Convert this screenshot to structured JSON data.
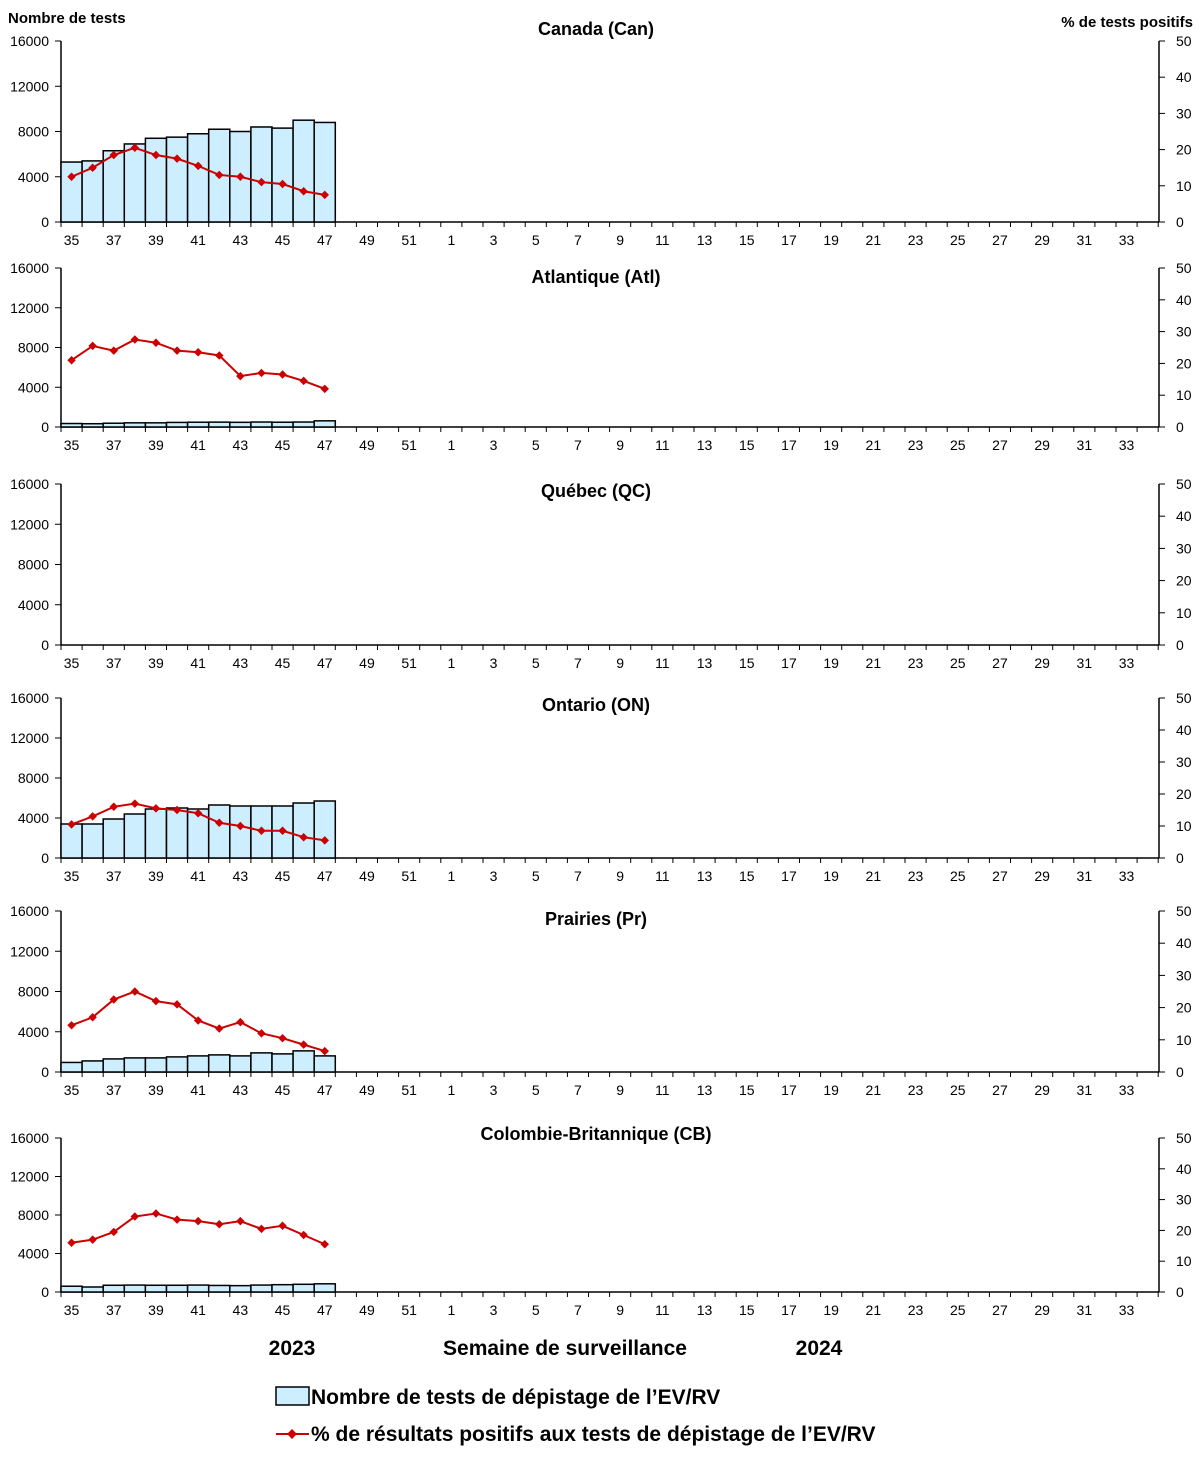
{
  "figure": {
    "left_axis_title": "Nombre de tests",
    "right_axis_title": "% de tests positifs",
    "x_axis_title": "Semaine de surveillance",
    "year_left": "2023",
    "year_right": "2024",
    "legend": {
      "bars_label": "Nombre de tests de dépistage de l’EV/RV",
      "line_label": "% de résultats positifs aux tests de dépistage de l’EV/RV"
    },
    "colors": {
      "bar_fill": "#cceeff",
      "bar_stroke": "#000000",
      "line": "#cc0000",
      "axis": "#000000"
    }
  },
  "chart_data": [
    {
      "type": "bar",
      "title": "Canada (Can)",
      "ylim": [
        0,
        16000
      ],
      "y2lim": [
        0,
        50
      ],
      "yticks": [
        0,
        4000,
        8000,
        12000,
        16000
      ],
      "y2ticks": [
        0,
        10,
        20,
        30,
        40,
        50
      ],
      "xticks": [
        "35",
        "37",
        "39",
        "41",
        "43",
        "45",
        "47",
        "49",
        "51",
        "1",
        "3",
        "5",
        "7",
        "9",
        "11",
        "13",
        "15",
        "17",
        "19",
        "21",
        "23",
        "25",
        "27",
        "29",
        "31",
        "33"
      ],
      "weeks": [
        35,
        36,
        37,
        38,
        39,
        40,
        41,
        42,
        43,
        44,
        45,
        46,
        47
      ],
      "series": [
        {
          "name": "Nombre de tests de dépistage de l’EV/RV",
          "axis": "left",
          "type": "bar",
          "values": [
            5300,
            5400,
            6300,
            6900,
            7400,
            7500,
            7800,
            8200,
            8000,
            8400,
            8300,
            9000,
            8800
          ]
        },
        {
          "name": "% de résultats positifs aux tests de dépistage de l’EV/RV",
          "axis": "right",
          "type": "line",
          "values": [
            12.5,
            15,
            18.5,
            20.5,
            18.5,
            17.5,
            15.5,
            13,
            12.5,
            11,
            10.5,
            8.5,
            7.5
          ]
        }
      ]
    },
    {
      "type": "bar",
      "title": "Atlantique (Atl)",
      "ylim": [
        0,
        16000
      ],
      "y2lim": [
        0,
        50
      ],
      "yticks": [
        0,
        4000,
        8000,
        12000,
        16000
      ],
      "y2ticks": [
        0,
        10,
        20,
        30,
        40,
        50
      ],
      "xticks": [
        "35",
        "37",
        "39",
        "41",
        "43",
        "45",
        "47",
        "49",
        "51",
        "1",
        "3",
        "5",
        "7",
        "9",
        "11",
        "13",
        "15",
        "17",
        "19",
        "21",
        "23",
        "25",
        "27",
        "29",
        "31",
        "33"
      ],
      "weeks": [
        35,
        36,
        37,
        38,
        39,
        40,
        41,
        42,
        43,
        44,
        45,
        46,
        47
      ],
      "series": [
        {
          "name": "Nombre de tests de dépistage de l’EV/RV",
          "axis": "left",
          "type": "bar",
          "values": [
            350,
            330,
            380,
            420,
            420,
            460,
            480,
            490,
            470,
            500,
            480,
            500,
            620
          ]
        },
        {
          "name": "% de résultats positifs aux tests de dépistage de l’EV/RV",
          "axis": "right",
          "type": "line",
          "values": [
            21,
            25.5,
            24,
            27.5,
            26.5,
            24,
            23.5,
            22.5,
            16,
            17,
            16.5,
            14.5,
            12
          ]
        }
      ]
    },
    {
      "type": "bar",
      "title": "Québec (QC)",
      "ylim": [
        0,
        16000
      ],
      "y2lim": [
        0,
        50
      ],
      "yticks": [
        0,
        4000,
        8000,
        12000,
        16000
      ],
      "y2ticks": [
        0,
        10,
        20,
        30,
        40,
        50
      ],
      "xticks": [
        "35",
        "37",
        "39",
        "41",
        "43",
        "45",
        "47",
        "49",
        "51",
        "1",
        "3",
        "5",
        "7",
        "9",
        "11",
        "13",
        "15",
        "17",
        "19",
        "21",
        "23",
        "25",
        "27",
        "29",
        "31",
        "33"
      ],
      "weeks": [],
      "series": []
    },
    {
      "type": "bar",
      "title": "Ontario (ON)",
      "ylim": [
        0,
        16000
      ],
      "y2lim": [
        0,
        50
      ],
      "yticks": [
        0,
        4000,
        8000,
        12000,
        16000
      ],
      "y2ticks": [
        0,
        10,
        20,
        30,
        40,
        50
      ],
      "xticks": [
        "35",
        "37",
        "39",
        "41",
        "43",
        "45",
        "47",
        "49",
        "51",
        "1",
        "3",
        "5",
        "7",
        "9",
        "11",
        "13",
        "15",
        "17",
        "19",
        "21",
        "23",
        "25",
        "27",
        "29",
        "31",
        "33"
      ],
      "weeks": [
        35,
        36,
        37,
        38,
        39,
        40,
        41,
        42,
        43,
        44,
        45,
        46,
        47
      ],
      "series": [
        {
          "name": "Nombre de tests de dépistage de l’EV/RV",
          "axis": "left",
          "type": "bar",
          "values": [
            3400,
            3400,
            3900,
            4400,
            4900,
            5000,
            4900,
            5300,
            5200,
            5200,
            5200,
            5500,
            5700
          ]
        },
        {
          "name": "% de résultats positifs aux tests de dépistage de l’EV/RV",
          "axis": "right",
          "type": "line",
          "values": [
            10.5,
            13,
            16,
            17,
            15.5,
            15,
            14,
            11,
            10,
            8.5,
            8.5,
            6.5,
            5.5
          ]
        }
      ]
    },
    {
      "type": "bar",
      "title": "Prairies (Pr)",
      "ylim": [
        0,
        16000
      ],
      "y2lim": [
        0,
        50
      ],
      "yticks": [
        0,
        4000,
        8000,
        12000,
        16000
      ],
      "y2ticks": [
        0,
        10,
        20,
        30,
        40,
        50
      ],
      "xticks": [
        "35",
        "37",
        "39",
        "41",
        "43",
        "45",
        "47",
        "49",
        "51",
        "1",
        "3",
        "5",
        "7",
        "9",
        "11",
        "13",
        "15",
        "17",
        "19",
        "21",
        "23",
        "25",
        "27",
        "29",
        "31",
        "33"
      ],
      "weeks": [
        35,
        36,
        37,
        38,
        39,
        40,
        41,
        42,
        43,
        44,
        45,
        46,
        47
      ],
      "series": [
        {
          "name": "Nombre de tests de dépistage de l’EV/RV",
          "axis": "left",
          "type": "bar",
          "values": [
            950,
            1100,
            1300,
            1400,
            1400,
            1500,
            1600,
            1700,
            1600,
            1900,
            1800,
            2100,
            1600
          ]
        },
        {
          "name": "% de résultats positifs aux tests de dépistage de l’EV/RV",
          "axis": "right",
          "type": "line",
          "values": [
            14.5,
            17,
            22.5,
            25,
            22,
            21,
            16,
            13.5,
            15.5,
            12,
            10.5,
            8.5,
            6.5
          ]
        }
      ]
    },
    {
      "type": "bar",
      "title": "Colombie-Britannique (CB)",
      "ylim": [
        0,
        16000
      ],
      "y2lim": [
        0,
        50
      ],
      "yticks": [
        0,
        4000,
        8000,
        12000,
        16000
      ],
      "y2ticks": [
        0,
        10,
        20,
        30,
        40,
        50
      ],
      "xticks": [
        "35",
        "37",
        "39",
        "41",
        "43",
        "45",
        "47",
        "49",
        "51",
        "1",
        "3",
        "5",
        "7",
        "9",
        "11",
        "13",
        "15",
        "17",
        "19",
        "21",
        "23",
        "25",
        "27",
        "29",
        "31",
        "33"
      ],
      "weeks": [
        35,
        36,
        37,
        38,
        39,
        40,
        41,
        42,
        43,
        44,
        45,
        46,
        47
      ],
      "series": [
        {
          "name": "Nombre de tests de dépistage de l’EV/RV",
          "axis": "left",
          "type": "bar",
          "values": [
            600,
            520,
            700,
            720,
            700,
            700,
            720,
            680,
            660,
            720,
            760,
            800,
            850
          ]
        },
        {
          "name": "% de résultats positifs aux tests de dépistage de l’EV/RV",
          "axis": "right",
          "type": "line",
          "values": [
            16,
            17,
            19.5,
            24.5,
            25.5,
            23.5,
            23,
            22,
            23,
            20.5,
            21.5,
            18.5,
            15.5
          ]
        }
      ]
    }
  ]
}
